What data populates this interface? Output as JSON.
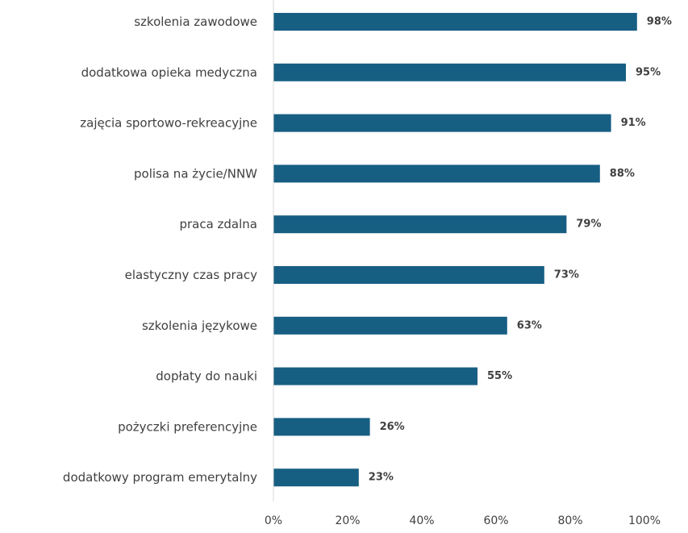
{
  "chart_data": {
    "type": "bar",
    "orientation": "horizontal",
    "title": "",
    "xlabel": "",
    "ylabel": "",
    "categories": [
      "szkolenia zawodowe",
      "dodatkowa opieka medyczna",
      "zajęcia sportowo-rekreacyjne",
      "polisa na życie/NNW",
      "praca zdalna",
      "elastyczny czas pracy",
      "szkolenia językowe",
      "dopłaty do nauki",
      "pożyczki preferencyjne",
      "dodatkowy program emerytalny"
    ],
    "values": [
      98,
      95,
      91,
      88,
      79,
      73,
      63,
      55,
      26,
      23
    ],
    "value_labels": [
      "98%",
      "95%",
      "91%",
      "88%",
      "79%",
      "73%",
      "63%",
      "55%",
      "26%",
      "23%"
    ],
    "xlim": [
      0,
      100
    ],
    "x_ticks": [
      0,
      20,
      40,
      60,
      80,
      100
    ],
    "x_tick_labels": [
      "0%",
      "20%",
      "40%",
      "60%",
      "80%",
      "100%"
    ],
    "bar_color": "#175E83",
    "grid": false,
    "legend": "none"
  }
}
